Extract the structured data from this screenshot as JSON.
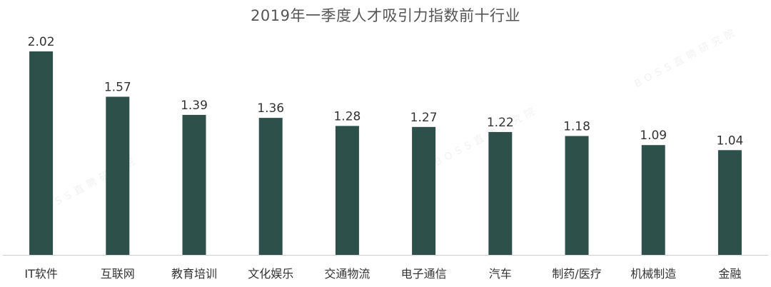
{
  "chart_data": {
    "type": "bar",
    "title": "2019年一季度人才吸引力指数前十行业",
    "categories": [
      "IT软件",
      "互联网",
      "教育培训",
      "文化娱乐",
      "交通物流",
      "电子通信",
      "汽车",
      "制药/医疗",
      "机械制造",
      "金融"
    ],
    "values": [
      2.02,
      1.57,
      1.39,
      1.36,
      1.28,
      1.27,
      1.22,
      1.18,
      1.09,
      1.04
    ],
    "value_labels": [
      "2.02",
      "1.57",
      "1.39",
      "1.36",
      "1.28",
      "1.27",
      "1.22",
      "1.18",
      "1.09",
      "1.04"
    ],
    "xlabel": "",
    "ylabel": "",
    "ylim": [
      0,
      2.02
    ],
    "grid": false,
    "legend": "none",
    "show_y_axis": false,
    "bar_color": "#2e504a",
    "axis_color": "#d0d0d0",
    "label_color": "#333333"
  },
  "watermark": {
    "text": "BOSS直聘研究院"
  }
}
